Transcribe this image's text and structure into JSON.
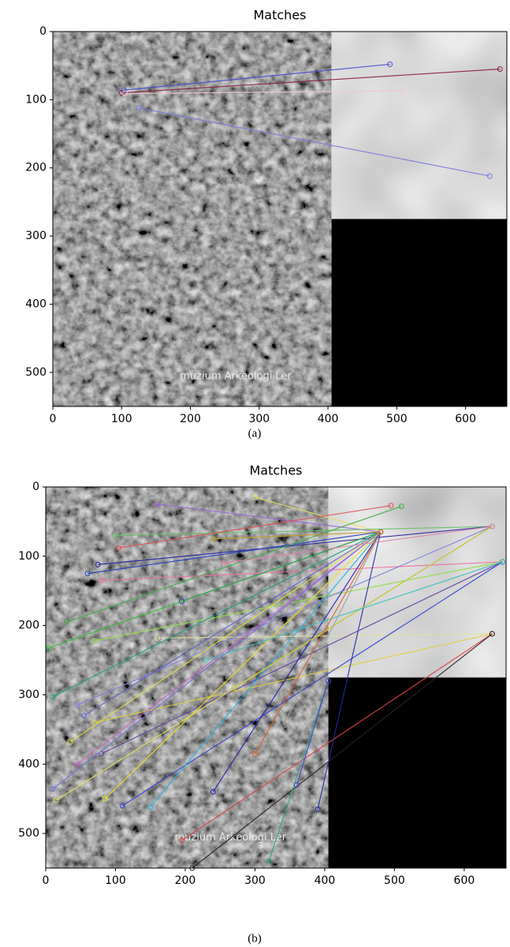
{
  "chart_data": [
    {
      "type": "matches",
      "title": "Matches",
      "caption": "(a)",
      "watermark": "muzium Arkeologi Ler",
      "xlim": [
        0,
        660
      ],
      "ylim": [
        550,
        0
      ],
      "xticks": [
        0,
        100,
        200,
        300,
        400,
        500,
        600
      ],
      "yticks": [
        0,
        100,
        200,
        300,
        400,
        500
      ],
      "matches": [
        {
          "x1": 103,
          "y1": 86,
          "x2": 490,
          "y2": 48,
          "color": "#4a4ad8"
        },
        {
          "x1": 100,
          "y1": 90,
          "x2": 650,
          "y2": 55,
          "color": "#8a2040"
        },
        {
          "x1": 105,
          "y1": 91,
          "x2": 507,
          "y2": 87,
          "color": "#f0c8d0"
        },
        {
          "x1": 125,
          "y1": 112,
          "x2": 635,
          "y2": 212,
          "color": "#7a7ae0"
        }
      ]
    },
    {
      "type": "matches",
      "title": "Matches",
      "caption": "(b)",
      "watermark": "muzium Arkeologi Ler",
      "xlim": [
        0,
        660
      ],
      "ylim": [
        550,
        0
      ],
      "xticks": [
        0,
        100,
        200,
        300,
        400,
        500,
        600
      ],
      "yticks": [
        0,
        100,
        200,
        300,
        400,
        500
      ],
      "matches": [
        {
          "x1": 300,
          "y1": 15,
          "x2": 480,
          "y2": 65,
          "color": "#e8e060"
        },
        {
          "x1": 160,
          "y1": 25,
          "x2": 480,
          "y2": 65,
          "color": "#a060e0"
        },
        {
          "x1": 100,
          "y1": 70,
          "x2": 640,
          "y2": 57,
          "color": "#60c060"
        },
        {
          "x1": 105,
          "y1": 88,
          "x2": 495,
          "y2": 27,
          "color": "#e05050"
        },
        {
          "x1": 75,
          "y1": 112,
          "x2": 640,
          "y2": 57,
          "color": "#2020a0"
        },
        {
          "x1": 60,
          "y1": 125,
          "x2": 480,
          "y2": 65,
          "color": "#2040c0"
        },
        {
          "x1": 80,
          "y1": 135,
          "x2": 655,
          "y2": 108,
          "color": "#f070a0"
        },
        {
          "x1": 195,
          "y1": 165,
          "x2": 480,
          "y2": 65,
          "color": "#3030c0"
        },
        {
          "x1": 30,
          "y1": 195,
          "x2": 510,
          "y2": 28,
          "color": "#40b040"
        },
        {
          "x1": 5,
          "y1": 232,
          "x2": 480,
          "y2": 65,
          "color": "#30c030"
        },
        {
          "x1": 70,
          "y1": 222,
          "x2": 655,
          "y2": 108,
          "color": "#90e040"
        },
        {
          "x1": 160,
          "y1": 218,
          "x2": 640,
          "y2": 212,
          "color": "#e0e0a0"
        },
        {
          "x1": 10,
          "y1": 303,
          "x2": 480,
          "y2": 65,
          "color": "#20a080"
        },
        {
          "x1": 45,
          "y1": 315,
          "x2": 640,
          "y2": 57,
          "color": "#8080e0"
        },
        {
          "x1": 55,
          "y1": 330,
          "x2": 480,
          "y2": 65,
          "color": "#6060d0"
        },
        {
          "x1": 70,
          "y1": 340,
          "x2": 640,
          "y2": 212,
          "color": "#e0d040"
        },
        {
          "x1": 35,
          "y1": 368,
          "x2": 480,
          "y2": 65,
          "color": "#e0e040"
        },
        {
          "x1": 80,
          "y1": 385,
          "x2": 655,
          "y2": 108,
          "color": "#6040a0"
        },
        {
          "x1": 45,
          "y1": 400,
          "x2": 480,
          "y2": 65,
          "color": "#d060d0"
        },
        {
          "x1": 10,
          "y1": 436,
          "x2": 480,
          "y2": 65,
          "color": "#7070e0"
        },
        {
          "x1": 15,
          "y1": 452,
          "x2": 640,
          "y2": 57,
          "color": "#e0e060"
        },
        {
          "x1": 85,
          "y1": 450,
          "x2": 480,
          "y2": 65,
          "color": "#f0e020"
        },
        {
          "x1": 110,
          "y1": 460,
          "x2": 655,
          "y2": 108,
          "color": "#3040d0"
        },
        {
          "x1": 150,
          "y1": 462,
          "x2": 480,
          "y2": 65,
          "color": "#20b0e0"
        },
        {
          "x1": 195,
          "y1": 510,
          "x2": 640,
          "y2": 212,
          "color": "#e04040"
        },
        {
          "x1": 240,
          "y1": 440,
          "x2": 480,
          "y2": 65,
          "color": "#2020b0"
        },
        {
          "x1": 210,
          "y1": 550,
          "x2": 640,
          "y2": 212,
          "color": "#302020"
        },
        {
          "x1": 320,
          "y1": 540,
          "x2": 405,
          "y2": 280,
          "color": "#30a080"
        },
        {
          "x1": 390,
          "y1": 465,
          "x2": 480,
          "y2": 65,
          "color": "#2030a0"
        },
        {
          "x1": 360,
          "y1": 430,
          "x2": 405,
          "y2": 280,
          "color": "#4040d0"
        },
        {
          "x1": 270,
          "y1": 290,
          "x2": 640,
          "y2": 57,
          "color": "#c0c040"
        },
        {
          "x1": 230,
          "y1": 250,
          "x2": 655,
          "y2": 108,
          "color": "#40c0c0"
        },
        {
          "x1": 255,
          "y1": 110,
          "x2": 640,
          "y2": 57,
          "color": "#e080b0"
        },
        {
          "x1": 240,
          "y1": 75,
          "x2": 480,
          "y2": 65,
          "color": "#c0a020"
        },
        {
          "x1": 340,
          "y1": 345,
          "x2": 480,
          "y2": 65,
          "color": "#a0a0a0"
        },
        {
          "x1": 300,
          "y1": 385,
          "x2": 480,
          "y2": 65,
          "color": "#e06030"
        }
      ]
    }
  ]
}
